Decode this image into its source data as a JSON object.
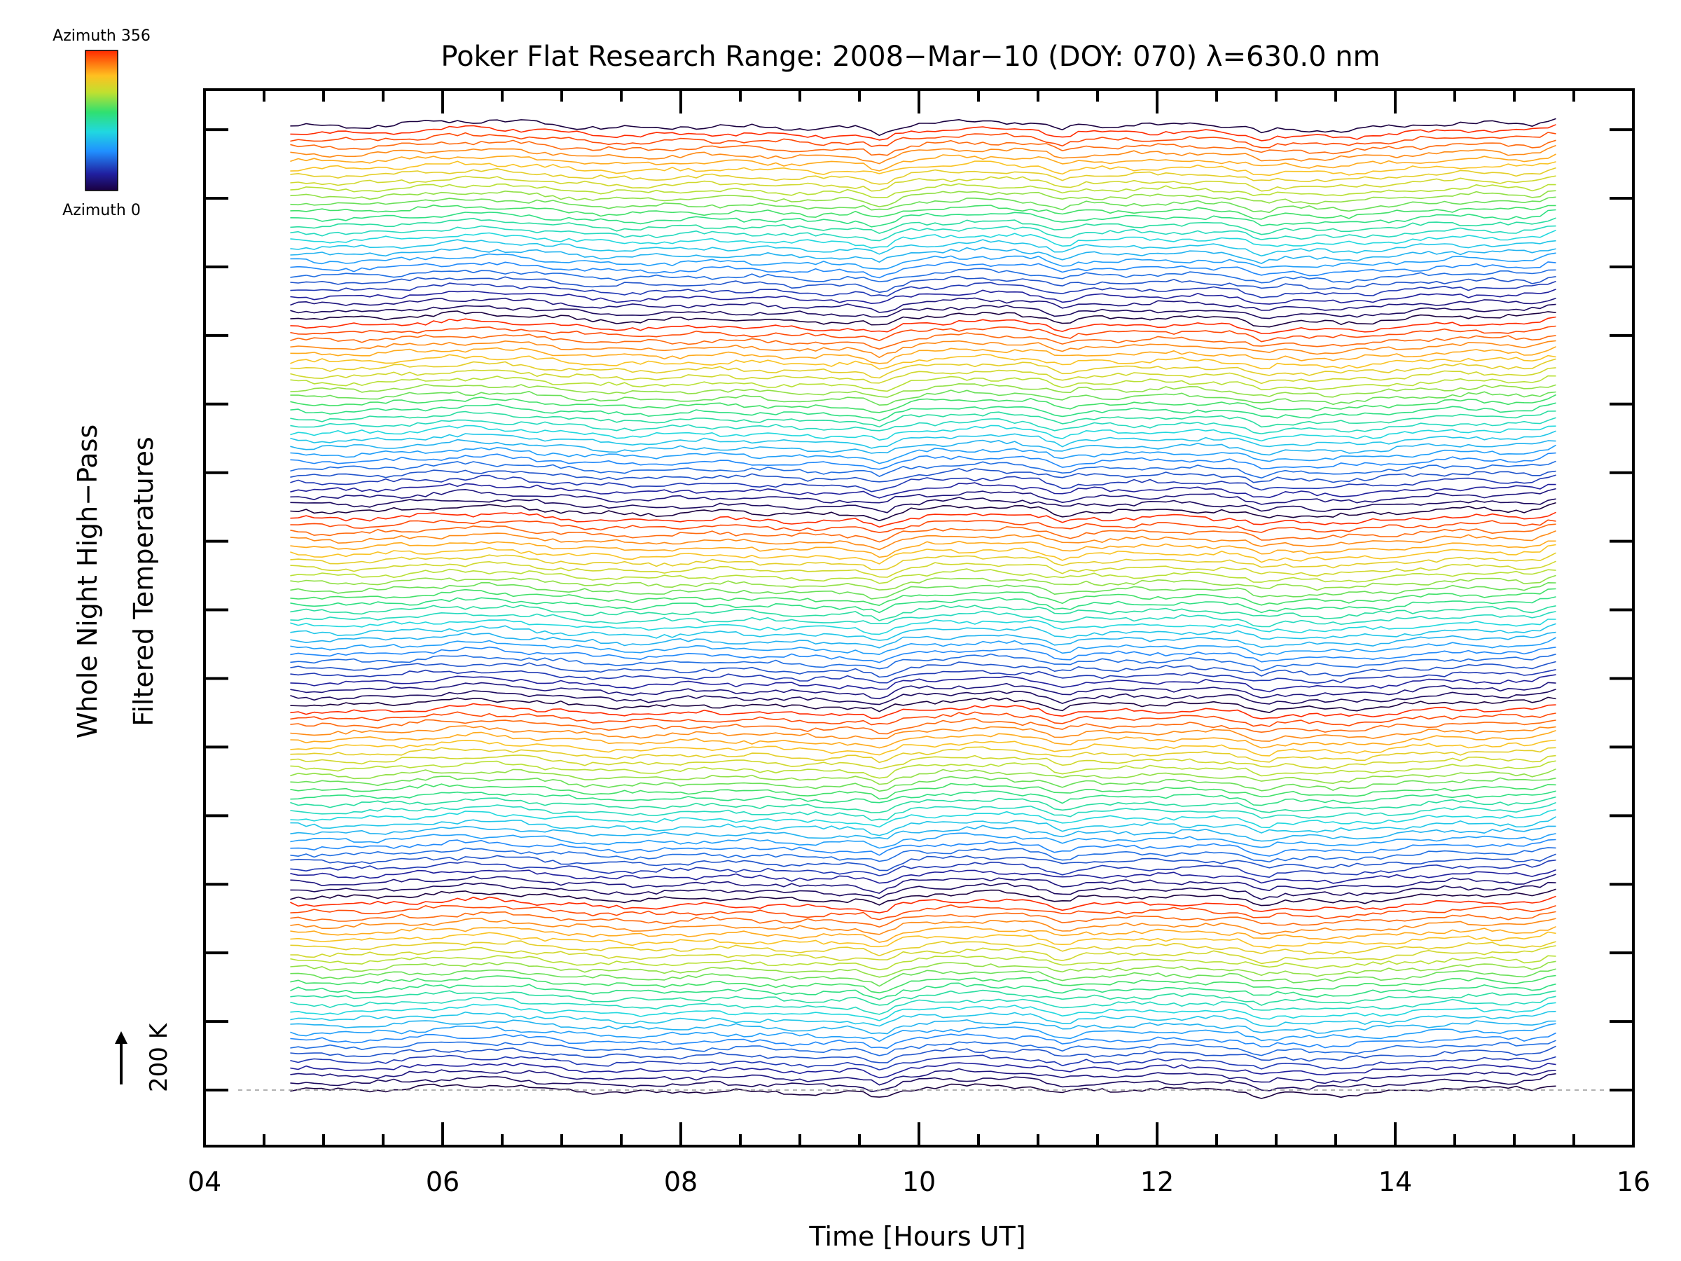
{
  "chart_data": {
    "type": "line",
    "title": "Poker Flat Research Range: 2008−Mar−10 (DOY: 070) λ=630.0 nm",
    "xlabel": "Time [Hours UT]",
    "ylabel_line1": "Whole Night High−Pass",
    "ylabel_line2": "Filtered Temperatures",
    "xlim": [
      4,
      16
    ],
    "x_ticks": [
      "04",
      "06",
      "08",
      "10",
      "12",
      "14",
      "16"
    ],
    "x_data_range": [
      4.72,
      15.35
    ],
    "n_traces": 136,
    "trace_spacing_K": 30,
    "n_samples": 160,
    "scale_bar_label": "200 K",
    "colorbar": {
      "top_label": "Azimuth 356",
      "bottom_label": "Azimuth 0",
      "azimuth_range": [
        0,
        356
      ],
      "colormap": "rainbow"
    },
    "azimuth_cycle_length": 27,
    "common_features": [
      {
        "time": 9.68,
        "value": -28
      },
      {
        "time": 11.2,
        "value": -22
      },
      {
        "time": 12.88,
        "value": -20
      },
      {
        "time": 15.35,
        "value": 25
      }
    ],
    "colors": {
      "frame": "#000000",
      "zero_line": "#999999"
    }
  }
}
